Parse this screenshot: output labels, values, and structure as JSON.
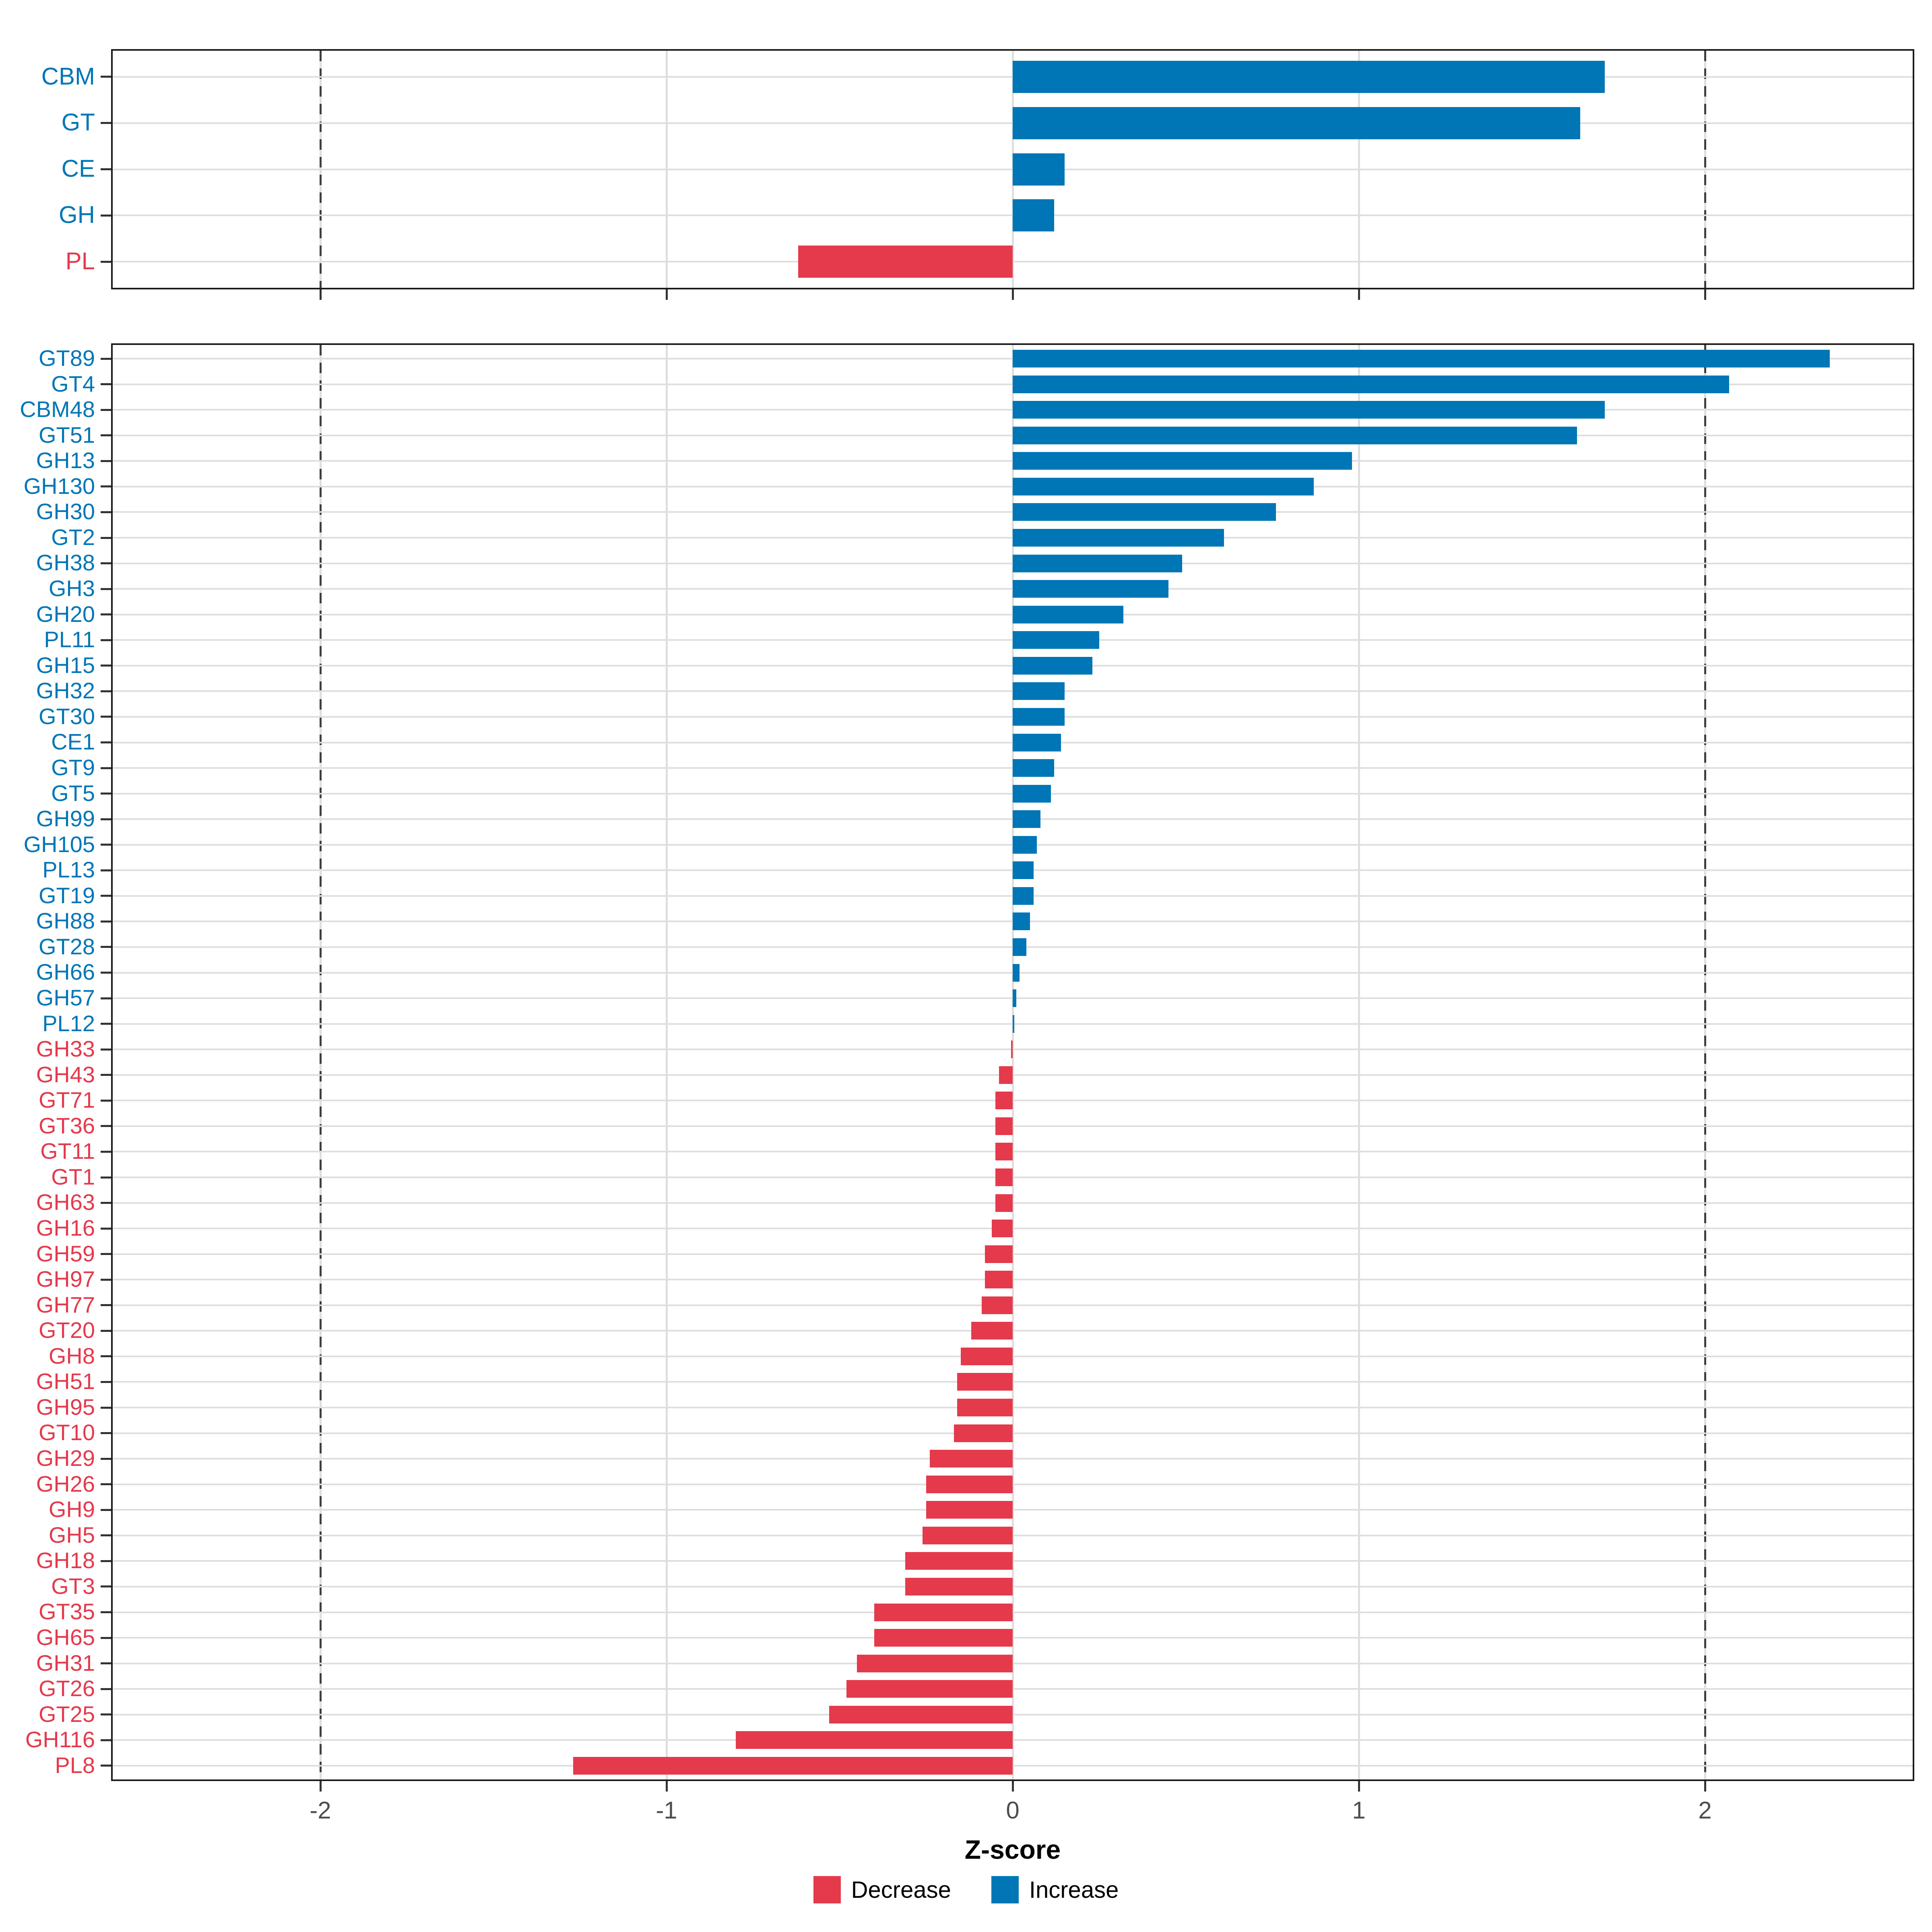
{
  "figure": {
    "xlabel": "Z-score",
    "x_tick_values": [
      -2,
      -1,
      0,
      1,
      2
    ],
    "x_tick_labels": [
      "-2",
      "-1",
      "0",
      "1",
      "2"
    ],
    "xlim": [
      -2.6,
      2.6
    ],
    "dashed_lines_at": [
      -2,
      2
    ],
    "grid": "on",
    "legend_position": "bottom"
  },
  "colors": {
    "increase": "#0076B6",
    "decrease": "#E43A4C",
    "gridline": "#DEDEDE",
    "dashed_line": "#3F3F3F",
    "axis_text": "#4D4D4D",
    "panel_border": "#1B1B1B"
  },
  "legend": {
    "items": [
      {
        "label": "Decrease",
        "color": "#E43A4C"
      },
      {
        "label": "Increase",
        "color": "#0076B6"
      }
    ]
  },
  "chart_data": [
    {
      "type": "bar",
      "orientation": "horizontal",
      "panel": "families",
      "xlabel": "Z-score",
      "xlim": [
        -2.6,
        2.6
      ],
      "categories": [
        "CBM",
        "GT",
        "CE",
        "GH",
        "PL"
      ],
      "values": [
        1.71,
        1.64,
        0.15,
        0.12,
        -0.62
      ]
    },
    {
      "type": "bar",
      "orientation": "horizontal",
      "panel": "subfamilies",
      "xlabel": "Z-score",
      "xlim": [
        -2.6,
        2.6
      ],
      "categories": [
        "GT89",
        "GT4",
        "CBM48",
        "GT51",
        "GH13",
        "GH130",
        "GH30",
        "GT2",
        "GH38",
        "GH3",
        "GH20",
        "PL11",
        "GH15",
        "GH32",
        "GT30",
        "CE1",
        "GT9",
        "GT5",
        "GH99",
        "GH105",
        "PL13",
        "GT19",
        "GH88",
        "GT28",
        "GH66",
        "GH57",
        "PL12",
        "GH33",
        "GH43",
        "GT71",
        "GT36",
        "GT11",
        "GT1",
        "GH63",
        "GH16",
        "GH59",
        "GH97",
        "GH77",
        "GT20",
        "GH8",
        "GH51",
        "GH95",
        "GT10",
        "GH29",
        "GH26",
        "GH9",
        "GH5",
        "GH18",
        "GT3",
        "GT35",
        "GH65",
        "GH31",
        "GT26",
        "GT25",
        "GH116",
        "PL8"
      ],
      "values": [
        2.36,
        2.07,
        1.71,
        1.63,
        0.98,
        0.87,
        0.76,
        0.61,
        0.49,
        0.45,
        0.32,
        0.25,
        0.23,
        0.15,
        0.15,
        0.14,
        0.12,
        0.11,
        0.08,
        0.07,
        0.06,
        0.06,
        0.05,
        0.04,
        0.02,
        0.01,
        0.005,
        -0.005,
        -0.04,
        -0.05,
        -0.05,
        -0.05,
        -0.05,
        -0.05,
        -0.06,
        -0.08,
        -0.08,
        -0.09,
        -0.12,
        -0.15,
        -0.16,
        -0.16,
        -0.17,
        -0.24,
        -0.25,
        -0.25,
        -0.26,
        -0.31,
        -0.31,
        -0.4,
        -0.4,
        -0.45,
        -0.48,
        -0.53,
        -0.8,
        -1.27
      ]
    }
  ]
}
